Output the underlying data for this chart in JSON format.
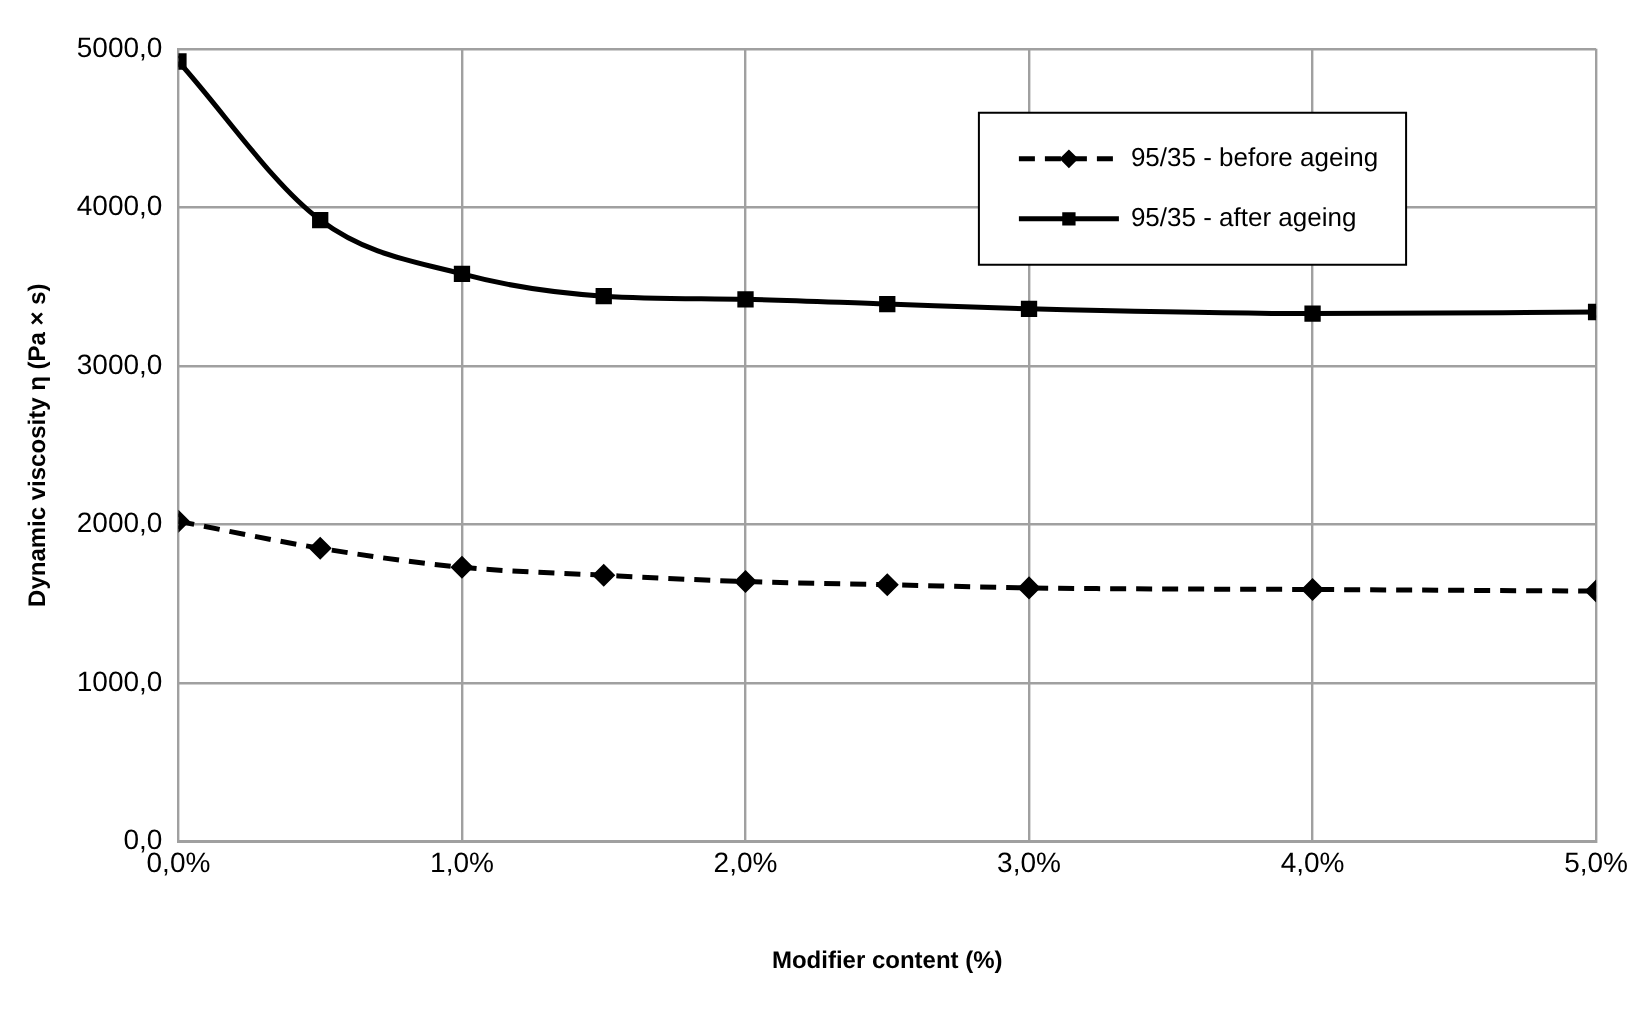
{
  "chart_data": {
    "type": "line",
    "xlabel": "Modifier content (%)",
    "ylabel": "Dynamic viscosity η (Pa × s)",
    "x": [
      0,
      0.5,
      1,
      1.5,
      2,
      2.5,
      3,
      4,
      5
    ],
    "series": [
      {
        "name": "95/35 - before ageing",
        "color": "#000000",
        "marker": "diamond",
        "line_style": "dashed",
        "values": [
          2020,
          1850,
          1730,
          1680,
          1640,
          1620,
          1600,
          1590,
          1580
        ]
      },
      {
        "name": "95/35 - after ageing",
        "color": "#000000",
        "marker": "square",
        "line_style": "solid",
        "values": [
          4920,
          3920,
          3580,
          3440,
          3420,
          3390,
          3360,
          3330,
          3340
        ]
      }
    ],
    "xlim": [
      0,
      5
    ],
    "xticks": [
      {
        "value": 0,
        "label": "0,0%"
      },
      {
        "value": 1,
        "label": "1,0%"
      },
      {
        "value": 2,
        "label": "2,0%"
      },
      {
        "value": 3,
        "label": "3,0%"
      },
      {
        "value": 4,
        "label": "4,0%"
      },
      {
        "value": 5,
        "label": "5,0%"
      }
    ],
    "ylim": [
      0,
      5000
    ],
    "yticks": [
      {
        "value": 0,
        "label": "0,0"
      },
      {
        "value": 1000,
        "label": "1000,0"
      },
      {
        "value": 2000,
        "label": "2000,0"
      },
      {
        "value": 3000,
        "label": "3000,0"
      },
      {
        "value": 4000,
        "label": "4000,0"
      },
      {
        "value": 5000,
        "label": "5000,0"
      }
    ],
    "grid": true,
    "legend": "top right"
  }
}
